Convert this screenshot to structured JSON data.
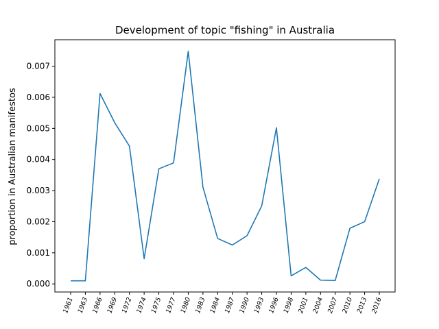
{
  "chart_data": {
    "type": "line",
    "title": "Development of topic \"fishing\" in Australia",
    "xlabel": "",
    "ylabel": "proportion in Australian manifestos",
    "categories": [
      "1961",
      "1963",
      "1966",
      "1969",
      "1972",
      "1974",
      "1975",
      "1977",
      "1980",
      "1983",
      "1984",
      "1987",
      "1990",
      "1993",
      "1996",
      "1998",
      "2001",
      "2004",
      "2007",
      "2010",
      "2013",
      "2016"
    ],
    "series": [
      {
        "values": [
          0.0001,
          0.0001,
          0.00612,
          0.00518,
          0.00443,
          0.00081,
          0.0037,
          0.00389,
          0.00748,
          0.00311,
          0.00146,
          0.00125,
          0.00155,
          0.00251,
          0.00502,
          0.00026,
          0.00053,
          0.00012,
          0.00011,
          0.00179,
          0.002,
          0.00338
        ],
        "color": "#1f77b4"
      }
    ],
    "yticks": [
      "0.000",
      "0.001",
      "0.002",
      "0.003",
      "0.004",
      "0.005",
      "0.006",
      "0.007"
    ],
    "ylim": [
      -0.00026,
      0.00785
    ],
    "grid": false,
    "legend": "none"
  }
}
